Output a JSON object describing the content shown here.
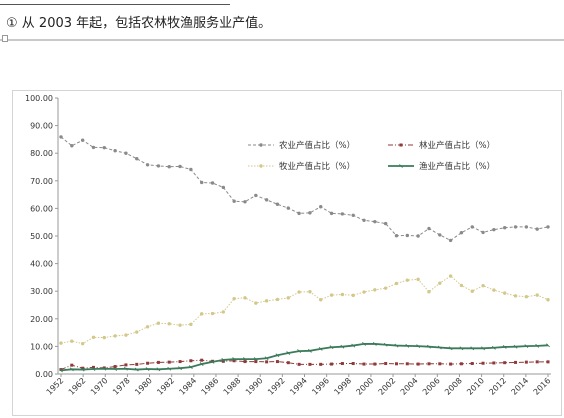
{
  "note": {
    "text": "① 从 2003 年起，包括农林牧渔服务业产值。"
  },
  "colors": {
    "agriculture": "#8a8a8a",
    "forestry": "#8f3a3a",
    "animal": "#d3c78a",
    "fishery": "#3b7a5a",
    "axis": "#9a9a9a"
  },
  "chart_data": {
    "type": "line",
    "title": "",
    "xlabel": "",
    "ylabel": "",
    "ylim": [
      0,
      100
    ],
    "yticks": [
      "0.00",
      "10.00",
      "20.00",
      "30.00",
      "40.00",
      "50.00",
      "60.00",
      "70.00",
      "80.00",
      "90.00",
      "100.00"
    ],
    "xtick_labels": [
      "1952",
      "1962",
      "1970",
      "1978",
      "1980",
      "1982",
      "1984",
      "1986",
      "1988",
      "1990",
      "1992",
      "1994",
      "1996",
      "1998",
      "2000",
      "2002",
      "2004",
      "2006",
      "2008",
      "2010",
      "2012",
      "2014",
      "2016"
    ],
    "grid": false,
    "legend_position": "top-right",
    "series": [
      {
        "name": "农业产值占比（%）",
        "key": "agriculture",
        "values": [
          85.9,
          82.7,
          84.7,
          82.1,
          82.0,
          80.9,
          80.0,
          78.0,
          75.8,
          75.4,
          75.1,
          75.2,
          74.1,
          69.4,
          69.2,
          67.6,
          62.6,
          62.4,
          64.7,
          63.1,
          61.5,
          60.1,
          58.2,
          58.4,
          60.6,
          58.2,
          58.0,
          57.5,
          55.7,
          55.2,
          54.5,
          50.1,
          50.2,
          50.0,
          52.7,
          50.4,
          48.4,
          51.2,
          53.3,
          51.3,
          52.3,
          53.0,
          53.3,
          53.3,
          52.5,
          53.3
        ]
      },
      {
        "name": "林业产值占比（%）",
        "key": "forestry",
        "values": [
          1.6,
          3.2,
          2.1,
          2.4,
          2.2,
          2.7,
          3.3,
          3.5,
          3.9,
          4.2,
          4.3,
          4.5,
          4.8,
          5.0,
          4.6,
          4.6,
          4.8,
          4.5,
          4.5,
          4.4,
          4.5,
          4.1,
          3.5,
          3.5,
          3.5,
          3.6,
          3.8,
          3.8,
          3.6,
          3.6,
          3.8,
          3.7,
          3.7,
          3.6,
          3.7,
          3.7,
          3.6,
          3.7,
          3.8,
          3.9,
          4.0,
          4.1,
          4.2,
          4.3,
          4.4,
          4.4
        ]
      },
      {
        "name": "牧业产值占比（%）",
        "key": "animal",
        "values": [
          11.2,
          11.9,
          11.0,
          13.3,
          13.2,
          13.8,
          14.1,
          15.2,
          17.1,
          18.4,
          18.2,
          17.7,
          18.0,
          21.8,
          21.9,
          22.5,
          27.3,
          27.6,
          25.7,
          26.5,
          27.0,
          27.6,
          29.7,
          29.8,
          26.9,
          28.6,
          28.8,
          28.5,
          29.7,
          30.5,
          31.1,
          32.8,
          34.0,
          34.3,
          29.8,
          32.9,
          35.5,
          32.1,
          30.0,
          32.0,
          30.4,
          29.3,
          28.3,
          28.0,
          28.6,
          26.9
        ]
      },
      {
        "name": "渔业产值占比（%）",
        "key": "fishery",
        "values": [
          1.3,
          1.7,
          1.6,
          1.8,
          1.9,
          1.8,
          1.9,
          1.6,
          1.8,
          1.7,
          1.9,
          2.1,
          2.5,
          3.6,
          4.4,
          5.1,
          5.4,
          5.4,
          5.4,
          5.7,
          6.8,
          7.6,
          8.3,
          8.4,
          9.1,
          9.7,
          9.9,
          10.3,
          10.9,
          10.9,
          10.6,
          10.3,
          10.2,
          10.1,
          9.9,
          9.6,
          9.3,
          9.3,
          9.3,
          9.3,
          9.5,
          9.8,
          9.9,
          10.1,
          10.2,
          10.4
        ]
      }
    ]
  }
}
